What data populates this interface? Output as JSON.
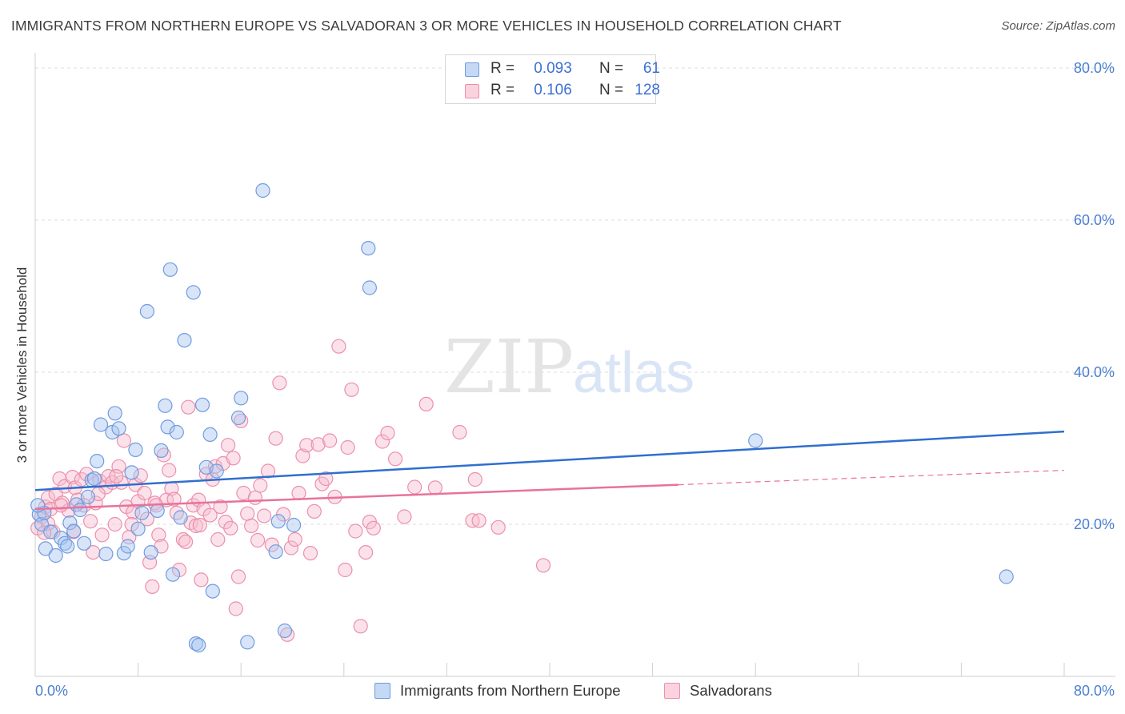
{
  "header": {
    "title": "IMMIGRANTS FROM NORTHERN EUROPE VS SALVADORAN 3 OR MORE VEHICLES IN HOUSEHOLD CORRELATION CHART",
    "source": "Source: ZipAtlas.com"
  },
  "watermark": {
    "zip": "ZIP",
    "atlas": "atlas"
  },
  "legend": {
    "rows": [
      {
        "r_label": "R =",
        "r_value": "0.093",
        "n_label": "N =",
        "n_value": "61",
        "color": "#a8c6f0",
        "border": "#6f9be0"
      },
      {
        "r_label": "R =",
        "r_value": "0.106",
        "n_label": "N =",
        "n_value": "128",
        "color": "#f7bfd0",
        "border": "#ec8fac"
      }
    ]
  },
  "bottom_legend": {
    "series1": "Immigrants from Northern Europe",
    "series2": "Salvadorans"
  },
  "colors": {
    "blue_fill": "rgba(168,198,240,0.45)",
    "blue_stroke": "#6f9be0",
    "blue_line": "#2f6fcf",
    "pink_fill": "rgba(247,191,208,0.45)",
    "pink_stroke": "#ec8fac",
    "pink_line": "#e8729b",
    "grid": "#dcdcdc",
    "tick_text": "#4a7fd0"
  },
  "chart_data": {
    "type": "scatter",
    "title": "IMMIGRANTS FROM NORTHERN EUROPE VS SALVADORAN 3 OR MORE VEHICLES IN HOUSEHOLD CORRELATION CHART",
    "xlabel": "",
    "ylabel": "3 or more Vehicles in Household",
    "xlim": [
      0,
      80
    ],
    "ylim": [
      0,
      80
    ],
    "x_ticks": [
      "0.0%",
      "80.0%"
    ],
    "y_ticks": [
      "20.0%",
      "40.0%",
      "60.0%",
      "80.0%"
    ],
    "y_tick_values": [
      20,
      40,
      60,
      80
    ],
    "grid": "horizontal dashed",
    "legend_position": "top-center",
    "series": [
      {
        "name": "Immigrants from Northern Europe",
        "R": 0.093,
        "N": 61,
        "trend": {
          "x": [
            0,
            80
          ],
          "y": [
            24.5,
            32.2
          ],
          "style": "solid"
        },
        "points": [
          [
            0.3,
            21.3
          ],
          [
            0.5,
            20.0
          ],
          [
            0.7,
            21.5
          ],
          [
            0.8,
            16.8
          ],
          [
            1.2,
            19.0
          ],
          [
            1.6,
            15.9
          ],
          [
            2.0,
            18.2
          ],
          [
            2.3,
            17.5
          ],
          [
            2.5,
            17.1
          ],
          [
            2.7,
            20.2
          ],
          [
            3.0,
            19.1
          ],
          [
            3.2,
            22.6
          ],
          [
            3.5,
            21.9
          ],
          [
            3.8,
            17.5
          ],
          [
            4.1,
            23.6
          ],
          [
            4.4,
            25.8
          ],
          [
            4.6,
            26.0
          ],
          [
            4.8,
            28.3
          ],
          [
            5.1,
            33.1
          ],
          [
            5.5,
            16.1
          ],
          [
            6.0,
            32.1
          ],
          [
            6.2,
            34.6
          ],
          [
            6.5,
            32.6
          ],
          [
            6.9,
            16.2
          ],
          [
            7.2,
            17.1
          ],
          [
            7.5,
            26.8
          ],
          [
            7.8,
            29.8
          ],
          [
            8.0,
            19.4
          ],
          [
            8.3,
            21.5
          ],
          [
            8.7,
            48.0
          ],
          [
            9.0,
            16.3
          ],
          [
            9.5,
            21.8
          ],
          [
            9.8,
            29.7
          ],
          [
            10.1,
            35.6
          ],
          [
            10.3,
            32.8
          ],
          [
            10.5,
            53.5
          ],
          [
            10.7,
            13.4
          ],
          [
            11.0,
            32.1
          ],
          [
            11.3,
            20.9
          ],
          [
            11.6,
            44.2
          ],
          [
            12.3,
            50.5
          ],
          [
            12.5,
            4.3
          ],
          [
            12.7,
            4.1
          ],
          [
            13.0,
            35.7
          ],
          [
            13.3,
            27.5
          ],
          [
            13.6,
            31.8
          ],
          [
            13.8,
            11.2
          ],
          [
            14.1,
            27.0
          ],
          [
            16.0,
            36.6
          ],
          [
            15.8,
            34.0
          ],
          [
            16.5,
            4.5
          ],
          [
            17.7,
            63.9
          ],
          [
            18.7,
            16.4
          ],
          [
            18.9,
            20.4
          ],
          [
            19.4,
            6.0
          ],
          [
            20.1,
            19.9
          ],
          [
            25.9,
            56.3
          ],
          [
            26.0,
            51.1
          ],
          [
            56.0,
            31.0
          ],
          [
            75.5,
            13.1
          ],
          [
            0.2,
            22.5
          ]
        ]
      },
      {
        "name": "Salvadorans",
        "R": 0.106,
        "N": 128,
        "trend": {
          "x": [
            0,
            50
          ],
          "y": [
            22.0,
            25.2
          ],
          "style": "solid",
          "dashed_extension": {
            "x": [
              50,
              80
            ],
            "y": [
              25.2,
              27.1
            ]
          }
        },
        "points": [
          [
            0.2,
            19.5
          ],
          [
            0.5,
            21.0
          ],
          [
            0.8,
            22.3
          ],
          [
            1.0,
            23.5
          ],
          [
            1.2,
            22.0
          ],
          [
            1.4,
            19.0
          ],
          [
            1.6,
            24.0
          ],
          [
            1.9,
            26.0
          ],
          [
            2.1,
            22.8
          ],
          [
            2.3,
            25.0
          ],
          [
            2.6,
            21.8
          ],
          [
            2.9,
            26.2
          ],
          [
            3.1,
            24.8
          ],
          [
            3.3,
            23.2
          ],
          [
            3.6,
            25.9
          ],
          [
            3.8,
            22.5
          ],
          [
            4.0,
            26.6
          ],
          [
            4.3,
            20.4
          ],
          [
            4.5,
            16.3
          ],
          [
            4.7,
            22.8
          ],
          [
            5.0,
            25.7
          ],
          [
            5.2,
            18.6
          ],
          [
            5.5,
            24.9
          ],
          [
            5.7,
            26.3
          ],
          [
            6.0,
            25.5
          ],
          [
            6.2,
            20.0
          ],
          [
            6.5,
            27.6
          ],
          [
            6.7,
            25.5
          ],
          [
            6.9,
            31.0
          ],
          [
            7.1,
            22.3
          ],
          [
            7.3,
            18.3
          ],
          [
            7.6,
            21.6
          ],
          [
            7.8,
            25.2
          ],
          [
            8.0,
            23.0
          ],
          [
            8.2,
            26.4
          ],
          [
            8.5,
            24.1
          ],
          [
            8.7,
            20.7
          ],
          [
            8.9,
            15.0
          ],
          [
            9.1,
            11.8
          ],
          [
            9.3,
            22.8
          ],
          [
            9.6,
            18.6
          ],
          [
            9.8,
            17.1
          ],
          [
            10.0,
            29.1
          ],
          [
            10.2,
            23.2
          ],
          [
            10.4,
            27.1
          ],
          [
            10.6,
            24.7
          ],
          [
            10.8,
            23.3
          ],
          [
            11.0,
            21.5
          ],
          [
            11.2,
            14.0
          ],
          [
            11.5,
            18.0
          ],
          [
            11.7,
            17.7
          ],
          [
            11.9,
            35.4
          ],
          [
            12.1,
            20.2
          ],
          [
            12.3,
            22.5
          ],
          [
            12.5,
            19.8
          ],
          [
            12.7,
            23.2
          ],
          [
            12.9,
            12.7
          ],
          [
            13.1,
            22.0
          ],
          [
            13.3,
            26.6
          ],
          [
            13.6,
            21.2
          ],
          [
            13.8,
            25.9
          ],
          [
            14.0,
            27.6
          ],
          [
            14.2,
            18.0
          ],
          [
            14.4,
            22.3
          ],
          [
            14.6,
            28.0
          ],
          [
            14.8,
            20.3
          ],
          [
            15.0,
            30.4
          ],
          [
            15.2,
            19.5
          ],
          [
            15.4,
            28.7
          ],
          [
            15.6,
            8.9
          ],
          [
            15.8,
            13.1
          ],
          [
            16.0,
            33.6
          ],
          [
            16.2,
            24.1
          ],
          [
            16.5,
            21.4
          ],
          [
            16.8,
            19.8
          ],
          [
            17.1,
            23.5
          ],
          [
            17.5,
            25.1
          ],
          [
            17.8,
            21.1
          ],
          [
            18.1,
            27.0
          ],
          [
            18.4,
            17.3
          ],
          [
            18.7,
            31.3
          ],
          [
            19.0,
            38.6
          ],
          [
            19.3,
            21.3
          ],
          [
            19.6,
            5.5
          ],
          [
            19.9,
            16.9
          ],
          [
            20.2,
            18.0
          ],
          [
            20.5,
            24.1
          ],
          [
            20.8,
            29.0
          ],
          [
            21.1,
            30.4
          ],
          [
            21.4,
            16.2
          ],
          [
            21.7,
            21.7
          ],
          [
            22.0,
            30.5
          ],
          [
            22.3,
            25.3
          ],
          [
            22.6,
            26.0
          ],
          [
            22.9,
            31.0
          ],
          [
            23.3,
            23.6
          ],
          [
            23.6,
            43.4
          ],
          [
            24.1,
            14.0
          ],
          [
            24.3,
            30.1
          ],
          [
            24.6,
            37.7
          ],
          [
            24.9,
            19.1
          ],
          [
            25.3,
            6.6
          ],
          [
            25.7,
            16.3
          ],
          [
            26.0,
            20.3
          ],
          [
            26.3,
            19.5
          ],
          [
            27.0,
            30.9
          ],
          [
            27.4,
            32.0
          ],
          [
            28.0,
            28.6
          ],
          [
            28.7,
            21.0
          ],
          [
            29.5,
            24.9
          ],
          [
            30.4,
            35.8
          ],
          [
            31.1,
            24.8
          ],
          [
            33.0,
            32.1
          ],
          [
            34.0,
            20.5
          ],
          [
            34.5,
            20.5
          ],
          [
            34.2,
            25.9
          ],
          [
            36.0,
            19.6
          ],
          [
            39.5,
            14.6
          ],
          [
            1.0,
            20.1
          ],
          [
            0.7,
            18.9
          ],
          [
            2.0,
            22.5
          ],
          [
            3.0,
            19.0
          ],
          [
            4.9,
            24.0
          ],
          [
            6.3,
            26.3
          ],
          [
            7.5,
            20.0
          ],
          [
            9.4,
            22.5
          ],
          [
            12.8,
            19.9
          ],
          [
            17.3,
            17.9
          ]
        ]
      }
    ]
  }
}
